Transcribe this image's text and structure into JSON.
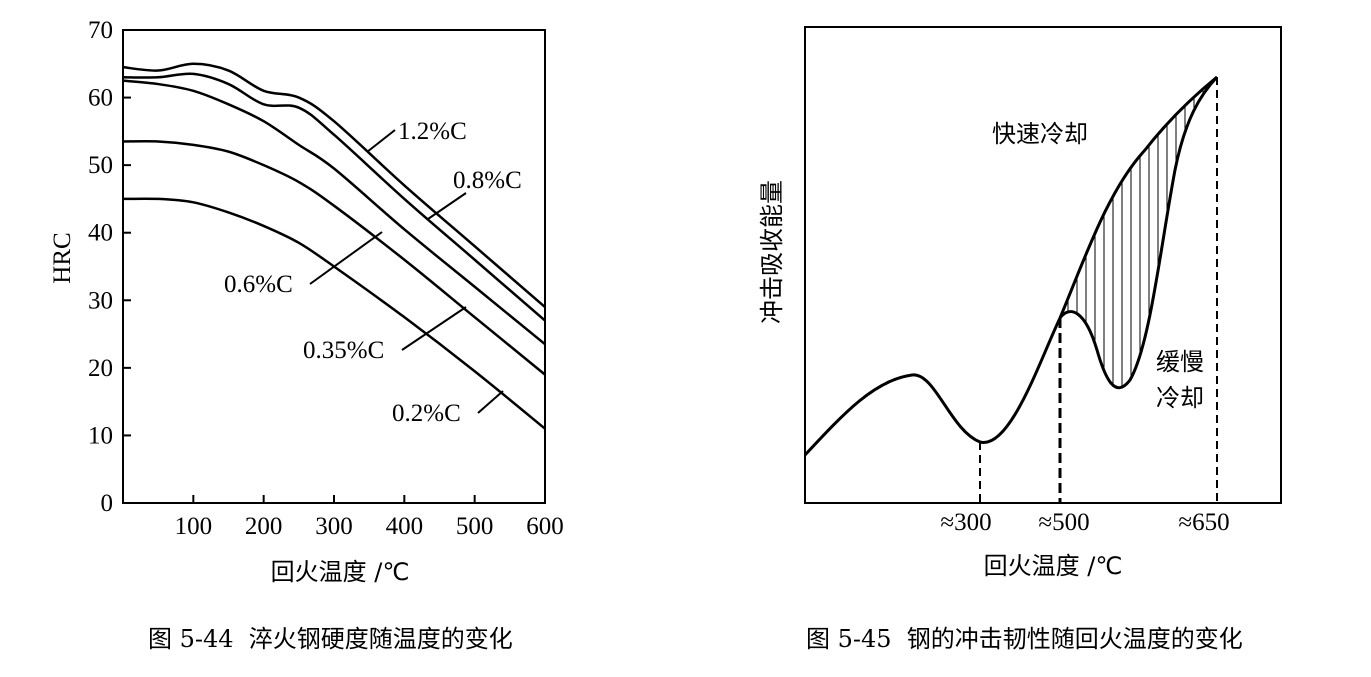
{
  "chart_data": [
    {
      "id": "fig-5-44",
      "type": "line",
      "caption": "图 5-44  淬火钢硬度随温度的变化",
      "xlabel": "回火温度 /℃",
      "ylabel": "HRC",
      "xlim": [
        0,
        600
      ],
      "ylim": [
        0,
        70
      ],
      "x_ticks": [
        100,
        200,
        300,
        400,
        500,
        600
      ],
      "y_ticks": [
        0,
        10,
        20,
        30,
        40,
        50,
        60,
        70
      ],
      "grid": false,
      "series": [
        {
          "name": "1.2%C",
          "x": [
            0,
            50,
            100,
            150,
            200,
            250,
            300,
            400,
            500,
            600
          ],
          "y": [
            64.5,
            64,
            65,
            64,
            61,
            60,
            56.5,
            47,
            38,
            29
          ]
        },
        {
          "name": "0.8%C",
          "x": [
            0,
            50,
            100,
            150,
            200,
            250,
            300,
            400,
            500,
            600
          ],
          "y": [
            63,
            63,
            63.5,
            62,
            59,
            58.5,
            54.5,
            45,
            36,
            27
          ]
        },
        {
          "name": "0.6%C",
          "x": [
            0,
            50,
            100,
            150,
            200,
            250,
            300,
            400,
            500,
            600
          ],
          "y": [
            62.5,
            62,
            61,
            59,
            56.5,
            53,
            49.5,
            40.5,
            32,
            23.5
          ]
        },
        {
          "name": "0.35%C",
          "x": [
            0,
            50,
            100,
            150,
            200,
            250,
            300,
            400,
            500,
            600
          ],
          "y": [
            53.5,
            53.5,
            53,
            52,
            50,
            47.5,
            44,
            36,
            27.5,
            19
          ]
        },
        {
          "name": "0.2%C",
          "x": [
            0,
            50,
            100,
            150,
            200,
            250,
            300,
            400,
            500,
            600
          ],
          "y": [
            45,
            45,
            44.5,
            43,
            41,
            38.5,
            35,
            27.5,
            19.5,
            11
          ]
        }
      ],
      "annotations": [
        "1.2%C",
        "0.8%C",
        "0.6%C",
        "0.35%C",
        "0.2%C"
      ]
    },
    {
      "id": "fig-5-45",
      "type": "line",
      "caption": "图 5-45  钢的冲击韧性随回火温度的变化",
      "xlabel": "回火温度 /℃",
      "ylabel": "冲击吸收能量",
      "x_ticks": [
        "≈300",
        "≈500",
        "≈650"
      ],
      "grid": false,
      "series": [
        {
          "name": "快速冷却"
        },
        {
          "name": "缓慢冷却"
        }
      ],
      "annotations": [
        "快速冷却",
        "缓慢\n冷却"
      ],
      "hatched_region": "between 快速冷却 and 缓慢冷却 from ≈500 to ≈650"
    }
  ],
  "left": {
    "xlabel": "回火温度 /℃",
    "ylabel": "HRC",
    "caption": "图 5-44  淬火钢硬度随温度的变化",
    "labels": {
      "c12": "1.2%C",
      "c08": "0.8%C",
      "c06": "0.6%C",
      "c035": "0.35%C",
      "c02": "0.2%C"
    }
  },
  "right": {
    "xlabel": "回火温度 /℃",
    "ylabel": "冲击吸收能量",
    "caption": "图 5-45  钢的冲击韧性随回火温度的变化",
    "fast_label": "快速冷却",
    "slow_label_1": "缓慢",
    "slow_label_2": "冷却",
    "ticks": [
      "≈300",
      "≈500",
      "≈650"
    ]
  }
}
